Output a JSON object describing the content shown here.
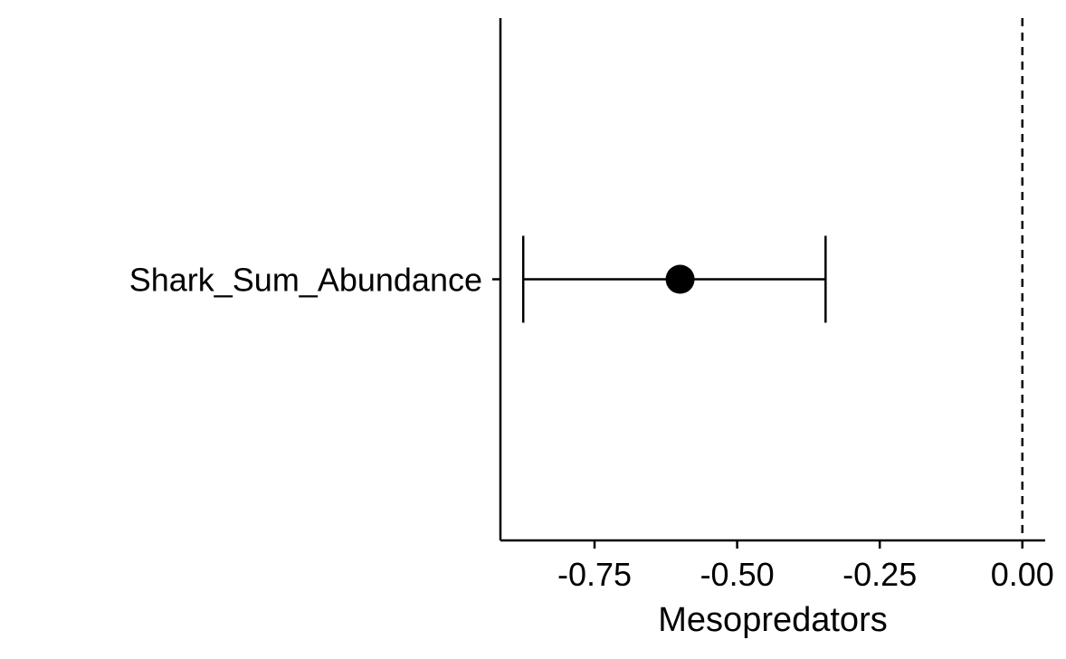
{
  "chart_data": {
    "type": "scatter",
    "subtype": "forest-plot",
    "title": "",
    "xlabel": "Mesopredators",
    "ylabel": "",
    "xlim": [
      -0.915,
      0.04
    ],
    "x_ticks": [
      -0.75,
      -0.5,
      -0.25,
      0.0
    ],
    "x_tick_labels": [
      "-0.75",
      "-0.50",
      "-0.25",
      "0.00"
    ],
    "categories": [
      "Shark_Sum_Abundance"
    ],
    "points": [
      {
        "category": "Shark_Sum_Abundance",
        "estimate": -0.6,
        "ci_low": -0.875,
        "ci_high": -0.345
      }
    ],
    "reference_line": {
      "x": 0.0,
      "style": "dashed"
    },
    "grid": false,
    "legend": "none",
    "colors": {
      "point": "#000000",
      "line": "#000000",
      "axis": "#000000"
    }
  }
}
